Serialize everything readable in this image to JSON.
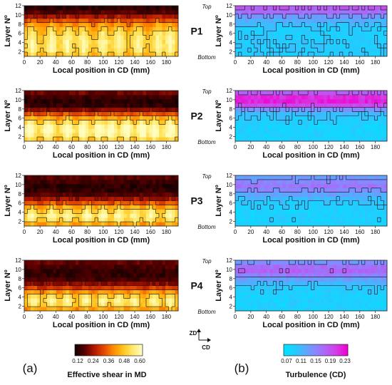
{
  "colors": {
    "shear_scale": [
      "#140000",
      "#5c0000",
      "#b41800",
      "#e24800",
      "#ff8c00",
      "#ffc21a",
      "#ffe866",
      "#fffcc0"
    ],
    "turb_scale": [
      "#00e2ff",
      "#22ccff",
      "#5aa8ff",
      "#8a86ff",
      "#b460f4",
      "#d43ce4",
      "#f000d2"
    ],
    "contour_line": "#111111"
  },
  "panel_labels": [
    "(a)",
    "(b)"
  ],
  "row_labels": [
    "P1",
    "P2",
    "P3",
    "P4"
  ],
  "top_label": "Top",
  "bottom_label": "Bottom",
  "axes": {
    "x_label": "Local position in CD (mm)",
    "y_label": "Layer Nº",
    "x_ticks": [
      "0",
      "20",
      "40",
      "60",
      "80",
      "100",
      "120",
      "140",
      "160",
      "180"
    ],
    "y_ticks": [
      "2",
      "4",
      "6",
      "8",
      "10",
      "12"
    ]
  },
  "orientation": {
    "vertical": "ZD",
    "horizontal": "CD"
  },
  "colorbars": [
    {
      "title": "Effective shear in MD",
      "ticks": [
        "0.12",
        "0.24",
        "0.36",
        "0.48",
        "0.60"
      ]
    },
    {
      "title": "Turbulence (CD)",
      "ticks": [
        "0.07",
        "0.11",
        "0.15",
        "0.19",
        "0.23"
      ]
    }
  ],
  "chart_data": {
    "type": "heatmap",
    "panels": [
      {
        "row": "P1",
        "variable": "Effective shear in MD",
        "xlim": [
          0,
          195
        ],
        "ylim": [
          1,
          12
        ],
        "zlim": [
          0.12,
          0.6
        ],
        "layer_profile": [
          0.47,
          0.51,
          0.52,
          0.52,
          0.51,
          0.49,
          0.45,
          0.4,
          0.33,
          0.25,
          0.18,
          0.14
        ],
        "column_peak_x": [
          10,
          35,
          55,
          75,
          100,
          120,
          145,
          170,
          185
        ]
      },
      {
        "row": "P1",
        "variable": "Turbulence (CD)",
        "xlim": [
          0,
          195
        ],
        "ylim": [
          1,
          12
        ],
        "zlim": [
          0.07,
          0.23
        ],
        "layer_profile": [
          0.095,
          0.098,
          0.098,
          0.097,
          0.096,
          0.095,
          0.098,
          0.105,
          0.12,
          0.14,
          0.165,
          0.18
        ]
      },
      {
        "row": "P2",
        "variable": "Effective shear in MD",
        "xlim": [
          0,
          195
        ],
        "ylim": [
          1,
          12
        ],
        "zlim": [
          0.12,
          0.6
        ],
        "layer_profile": [
          0.48,
          0.54,
          0.56,
          0.55,
          0.5,
          0.42,
          0.33,
          0.22,
          0.15,
          0.14,
          0.16,
          0.2
        ],
        "column_peak_x": [
          8,
          30,
          55,
          75,
          95,
          110,
          130,
          150,
          165,
          185
        ]
      },
      {
        "row": "P2",
        "variable": "Turbulence (CD)",
        "xlim": [
          0,
          195
        ],
        "ylim": [
          1,
          12
        ],
        "zlim": [
          0.07,
          0.23
        ],
        "layer_profile": [
          0.09,
          0.09,
          0.09,
          0.09,
          0.095,
          0.1,
          0.11,
          0.14,
          0.19,
          0.215,
          0.21,
          0.18
        ]
      },
      {
        "row": "P3",
        "variable": "Effective shear in MD",
        "xlim": [
          0,
          195
        ],
        "ylim": [
          1,
          12
        ],
        "zlim": [
          0.12,
          0.6
        ],
        "layer_profile": [
          0.42,
          0.5,
          0.53,
          0.5,
          0.43,
          0.33,
          0.24,
          0.18,
          0.15,
          0.14,
          0.16,
          0.18
        ],
        "column_peak_x": [
          10,
          35,
          55,
          80,
          100,
          120,
          140,
          160,
          185
        ]
      },
      {
        "row": "P3",
        "variable": "Turbulence (CD)",
        "xlim": [
          0,
          195
        ],
        "ylim": [
          1,
          12
        ],
        "zlim": [
          0.07,
          0.23
        ],
        "layer_profile": [
          0.09,
          0.092,
          0.09,
          0.09,
          0.095,
          0.1,
          0.11,
          0.125,
          0.145,
          0.16,
          0.15,
          0.135
        ]
      },
      {
        "row": "P4",
        "variable": "Effective shear in MD",
        "xlim": [
          0,
          195
        ],
        "ylim": [
          1,
          12
        ],
        "zlim": [
          0.12,
          0.6
        ],
        "layer_profile": [
          0.42,
          0.5,
          0.52,
          0.48,
          0.4,
          0.3,
          0.22,
          0.17,
          0.15,
          0.15,
          0.17,
          0.19
        ],
        "column_peak_x": [
          12,
          35,
          55,
          78,
          100,
          120,
          140,
          165,
          185
        ]
      },
      {
        "row": "P4",
        "variable": "Turbulence (CD)",
        "xlim": [
          0,
          195
        ],
        "ylim": [
          1,
          12
        ],
        "zlim": [
          0.07,
          0.23
        ],
        "layer_profile": [
          0.09,
          0.09,
          0.09,
          0.09,
          0.095,
          0.1,
          0.11,
          0.13,
          0.155,
          0.175,
          0.165,
          0.14
        ]
      }
    ]
  }
}
